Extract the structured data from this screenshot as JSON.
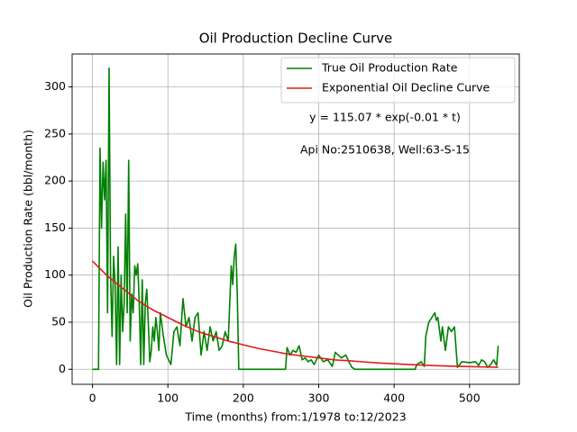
{
  "chart_data": {
    "type": "line",
    "title": "Oil Production Decline Curve",
    "xlabel": "Time (months) from:1/1978 to:12/2023",
    "ylabel": "Oil Production Rate (bbl/month)",
    "annotations": [
      "y = 115.07 * exp(-0.01 * t)",
      "Api No:2510638, Well:63-S-15"
    ],
    "xlim": [
      -27,
      566
    ],
    "ylim": [
      -16,
      335
    ],
    "xticks": [
      0,
      100,
      200,
      300,
      400,
      500
    ],
    "yticks": [
      0,
      50,
      100,
      150,
      200,
      250,
      300
    ],
    "grid": true,
    "legend": "upper right",
    "series": [
      {
        "name": "True Oil Production Rate",
        "color": "#008000",
        "x": [
          0,
          8,
          10,
          12,
          14,
          16,
          18,
          20,
          22,
          24,
          26,
          28,
          30,
          32,
          34,
          36,
          38,
          40,
          42,
          44,
          46,
          48,
          50,
          52,
          54,
          56,
          58,
          60,
          62,
          64,
          66,
          68,
          70,
          72,
          74,
          76,
          78,
          80,
          82,
          84,
          86,
          88,
          90,
          94,
          98,
          104,
          108,
          112,
          116,
          120,
          124,
          128,
          132,
          136,
          140,
          144,
          148,
          152,
          156,
          160,
          164,
          168,
          172,
          176,
          180,
          184,
          186,
          188,
          190,
          192,
          194,
          256,
          258,
          262,
          266,
          270,
          274,
          278,
          282,
          286,
          290,
          294,
          300,
          306,
          312,
          318,
          322,
          326,
          330,
          336,
          340,
          344,
          348,
          428,
          430,
          436,
          440,
          442,
          446,
          450,
          454,
          456,
          458,
          462,
          464,
          468,
          472,
          476,
          480,
          484,
          490,
          500,
          508,
          512,
          516,
          520,
          524,
          528,
          532,
          536,
          538
        ],
        "values": [
          0,
          0,
          235,
          150,
          220,
          180,
          222,
          60,
          320,
          100,
          35,
          120,
          90,
          5,
          130,
          5,
          100,
          40,
          70,
          165,
          60,
          222,
          30,
          80,
          60,
          110,
          100,
          112,
          70,
          5,
          95,
          5,
          70,
          85,
          50,
          8,
          20,
          45,
          30,
          55,
          40,
          20,
          60,
          35,
          15,
          5,
          40,
          45,
          25,
          75,
          45,
          55,
          30,
          55,
          60,
          15,
          40,
          20,
          45,
          30,
          40,
          20,
          25,
          40,
          30,
          110,
          90,
          120,
          133,
          80,
          0,
          0,
          23,
          15,
          20,
          18,
          25,
          10,
          12,
          8,
          10,
          5,
          15,
          8,
          10,
          3,
          18,
          15,
          12,
          15,
          8,
          2,
          0,
          0,
          5,
          8,
          3,
          35,
          50,
          55,
          60,
          52,
          55,
          30,
          45,
          20,
          45,
          40,
          45,
          2,
          8,
          7,
          8,
          4,
          10,
          8,
          2,
          5,
          10,
          4,
          25
        ]
      },
      {
        "name": "Exponential Oil Decline Curve",
        "color": "#e41a1c",
        "x": [
          0,
          20,
          40,
          60,
          80,
          100,
          120,
          140,
          160,
          180,
          200,
          220,
          240,
          260,
          280,
          300,
          320,
          340,
          360,
          380,
          400,
          420,
          440,
          460,
          480,
          500,
          520,
          538
        ],
        "values": [
          115,
          99,
          86,
          73,
          63,
          55,
          47,
          40,
          35,
          30,
          26,
          22,
          19,
          16,
          14,
          12,
          10,
          9,
          7.8,
          6.7,
          5.8,
          5,
          4.3,
          3.7,
          3.2,
          2.8,
          2.4,
          2.1
        ]
      }
    ]
  }
}
